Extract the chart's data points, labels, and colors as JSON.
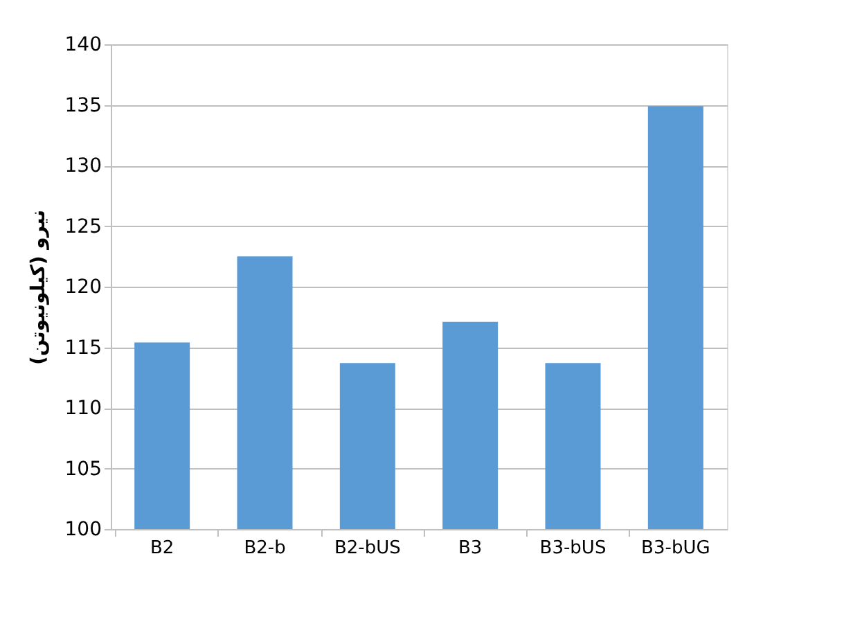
{
  "chart_data": {
    "type": "bar",
    "ylabel": "نیرو (کیلونیوتن)",
    "categories": [
      "B2",
      "B2-b",
      "B2-bUS",
      "B3",
      "B3-bUS",
      "B3-bUG"
    ],
    "values": [
      115.4,
      122.5,
      113.7,
      117.1,
      113.7,
      134.9
    ],
    "color": "#5b9bd5",
    "ylim": [
      100,
      140
    ],
    "yticks": [
      100,
      105,
      110,
      115,
      120,
      125,
      130,
      135,
      140
    ],
    "grid": "y"
  }
}
